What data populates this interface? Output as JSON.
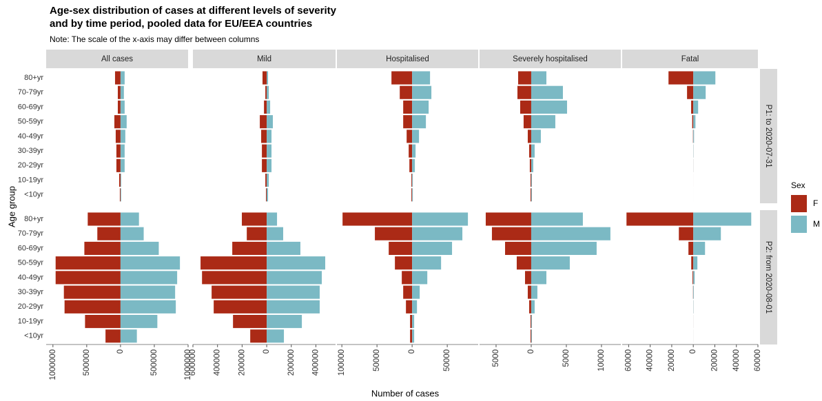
{
  "chart_data": {
    "type": "bar",
    "orientation": "horizontal",
    "title": [
      "Age-sex distribution of cases at different levels of severity",
      "and by time period, pooled data for EU/EEA countries"
    ],
    "subtitle": "Note: The scale of the x-axis may differ between columns",
    "x_label": "Number of cases",
    "y_label": "Age group",
    "categories": [
      "80+yr",
      "70-79yr",
      "60-69yr",
      "50-59yr",
      "40-49yr",
      "30-39yr",
      "20-29yr",
      "10-19yr",
      "<10yr"
    ],
    "rows": [
      "P1: to 2020-07-31",
      "P2: from 2020-08-01"
    ],
    "legend": {
      "title": "Sex",
      "items": [
        {
          "name": "F",
          "color": "#ab2a16"
        },
        {
          "name": "M",
          "color": "#7bb9c4"
        }
      ]
    },
    "panels": [
      {
        "title": "All cases",
        "xlim": [
          -1100000,
          1000000
        ],
        "xticks": [
          {
            "value": -1000000,
            "label": "1000000"
          },
          {
            "value": -500000,
            "label": "500000"
          },
          0,
          500000,
          1000000
        ],
        "F": [
          [
            -81000,
            -40000,
            -40000,
            -91000,
            -71000,
            -61000,
            -61000,
            -20000,
            -10000
          ],
          [
            -485000,
            -343000,
            -535000,
            -960000,
            -960000,
            -838000,
            -828000,
            -525000,
            -222000
          ]
        ],
        "M": [
          [
            61000,
            50000,
            61000,
            91000,
            71000,
            61000,
            61000,
            10000,
            10000
          ],
          [
            273000,
            343000,
            566000,
            879000,
            838000,
            808000,
            818000,
            545000,
            242000
          ]
        ]
      },
      {
        "title": "Mild",
        "xlim": [
          -600000,
          560000
        ],
        "xticks": [
          {
            "value": -600000,
            "label": "600000"
          },
          {
            "value": -400000,
            "label": "400000"
          },
          {
            "value": -200000,
            "label": "200000"
          },
          0,
          200000,
          400000
        ],
        "F": [
          [
            -34000,
            -11000,
            -22000,
            -56000,
            -45000,
            -39000,
            -39000,
            -11000,
            -6000
          ],
          [
            -202000,
            -162000,
            -280000,
            -538000,
            -526000,
            -448000,
            -431000,
            -274000,
            -134000
          ]
        ],
        "M": [
          [
            11000,
            17000,
            28000,
            50000,
            39000,
            39000,
            39000,
            17000,
            11000
          ],
          [
            84000,
            134000,
            274000,
            476000,
            448000,
            431000,
            431000,
            286000,
            140000
          ]
        ]
      },
      {
        "title": "Hospitalised",
        "xlim": [
          -107000,
          94000
        ],
        "xticks": [
          {
            "value": -100000,
            "label": "100000"
          },
          {
            "value": -50000,
            "label": "50000"
          },
          0,
          50000
        ],
        "F": [
          [
            -29400,
            -17600,
            -12700,
            -12700,
            -7800,
            -4900,
            -3900,
            -1000,
            -1000
          ],
          [
            -99000,
            -53000,
            -33300,
            -24500,
            -14700,
            -12700,
            -8800,
            -2900,
            -2900
          ]
        ],
        "M": [
          [
            25500,
            27400,
            23500,
            19600,
            9800,
            4900,
            3900,
            1000,
            1000
          ],
          [
            79400,
            71500,
            56800,
            41200,
            21600,
            10800,
            6900,
            2900,
            2900
          ]
        ]
      },
      {
        "title": "Severely hospitalised",
        "xlim": [
          -7350,
          12750
        ],
        "xticks": [
          {
            "value": -5000,
            "label": "5000"
          },
          0,
          5000,
          10000
        ],
        "F": [
          [
            -1860,
            -1960,
            -1570,
            -1080,
            -490,
            -290,
            -200,
            -100,
            -100
          ],
          [
            -6470,
            -5590,
            -3720,
            -2060,
            -880,
            -490,
            -290,
            -100,
            -100
          ]
        ],
        "M": [
          [
            2160,
            4510,
            5100,
            3430,
            1370,
            490,
            290,
            100,
            100
          ],
          [
            7350,
            11270,
            9310,
            5490,
            2160,
            880,
            490,
            100,
            100
          ]
        ]
      },
      {
        "title": "Fatal",
        "xlim": [
          -66000,
          60000
        ],
        "xticks": [
          {
            "value": -60000,
            "label": "60000"
          },
          {
            "value": -40000,
            "label": "40000"
          },
          {
            "value": -20000,
            "label": "20000"
          },
          0,
          20000,
          40000,
          60000
        ],
        "F": [
          [
            -23000,
            -5800,
            -2000,
            -1000,
            -300,
            -100,
            -50,
            -10,
            -5
          ],
          [
            -62000,
            -13400,
            -4500,
            -1900,
            -700,
            -250,
            -100,
            -30,
            -20
          ]
        ],
        "M": [
          [
            20500,
            11500,
            4500,
            2000,
            700,
            200,
            80,
            10,
            5
          ],
          [
            53800,
            25600,
            10900,
            3800,
            1300,
            500,
            200,
            40,
            30
          ]
        ]
      }
    ]
  }
}
